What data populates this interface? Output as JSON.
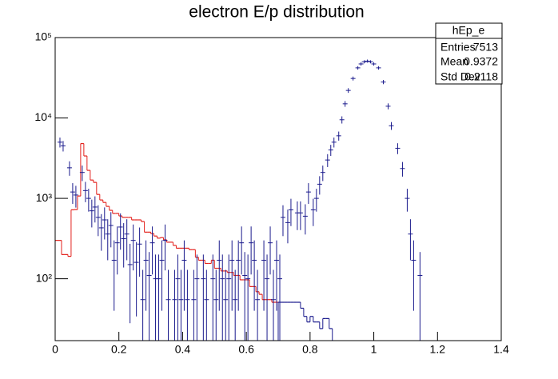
{
  "chart_data": {
    "type": "histogram",
    "title": "electron E/p distribution",
    "log_y": true,
    "xlim": [
      0,
      1.4
    ],
    "ylim": [
      17,
      100000
    ],
    "xticks": [
      0,
      0.2,
      0.4,
      0.6,
      0.8,
      1,
      1.2,
      1.4
    ],
    "yticks": [
      {
        "value": 100,
        "label": "10²"
      },
      {
        "value": 1000,
        "label": "10³"
      },
      {
        "value": 10000,
        "label": "10⁴"
      },
      {
        "value": 100000,
        "label": "10⁵"
      }
    ],
    "series": [
      {
        "type": "step",
        "color": "#e3211c",
        "bins": [
          0,
          0.01,
          0.02,
          0.03,
          0.04,
          0.05,
          0.06,
          0.07,
          0.08,
          0.09,
          0.1,
          0.11,
          0.12,
          0.13,
          0.14,
          0.15,
          0.16,
          0.17,
          0.18,
          0.19,
          0.2,
          0.21,
          0.22,
          0.23,
          0.24,
          0.25,
          0.26,
          0.27,
          0.28,
          0.29,
          0.3,
          0.31,
          0.32,
          0.33,
          0.34,
          0.35,
          0.36,
          0.37,
          0.38,
          0.39,
          0.4,
          0.41,
          0.42,
          0.43,
          0.44,
          0.45,
          0.46,
          0.47,
          0.48,
          0.49,
          0.5,
          0.51,
          0.52,
          0.53,
          0.54,
          0.55,
          0.56,
          0.57,
          0.58,
          0.59,
          0.6,
          0.61,
          0.62,
          0.63,
          0.64,
          0.65,
          0.66,
          0.67,
          0.68,
          0.69,
          0.7
        ],
        "values": [
          300,
          300,
          200,
          200,
          190,
          720,
          725,
          1070,
          4800,
          3370,
          2230,
          1690,
          1580,
          1120,
          955,
          890,
          795,
          710,
          650,
          650,
          605,
          580,
          580,
          580,
          540,
          540,
          540,
          515,
          380,
          380,
          365,
          340,
          320,
          325,
          305,
          285,
          285,
          260,
          240,
          240,
          240,
          240,
          230,
          230,
          185,
          170,
          170,
          155,
          155,
          170,
          135,
          135,
          125,
          125,
          120,
          120,
          110,
          110,
          97,
          97,
          97,
          80,
          80,
          69,
          64,
          55,
          55,
          55,
          51,
          51
        ]
      },
      {
        "type": "step",
        "color": "#1a1a8c",
        "bins": [
          0.7,
          0.71,
          0.72,
          0.73,
          0.74,
          0.75,
          0.76,
          0.77,
          0.78,
          0.79,
          0.8,
          0.81,
          0.82,
          0.83,
          0.84,
          0.85,
          0.86,
          0.87
        ],
        "values": [
          51,
          51,
          51,
          51,
          51,
          51,
          51,
          43,
          34,
          29,
          34,
          29,
          29,
          24,
          32,
          32,
          24
        ]
      },
      {
        "type": "errorbar",
        "color": "#1a1a8c",
        "x": [
          0.015,
          0.025,
          0.045,
          0.055,
          0.065,
          0.085,
          0.095,
          0.105,
          0.115,
          0.125,
          0.135,
          0.145,
          0.155,
          0.165,
          0.175,
          0.185,
          0.195,
          0.205,
          0.215,
          0.225,
          0.235,
          0.245,
          0.255,
          0.265,
          0.275,
          0.285,
          0.295,
          0.305,
          0.315,
          0.325,
          0.335,
          0.345,
          0.355,
          0.375,
          0.385,
          0.395,
          0.405,
          0.415,
          0.435,
          0.445,
          0.465,
          0.475,
          0.495,
          0.505,
          0.515,
          0.525,
          0.535,
          0.545,
          0.555,
          0.565,
          0.575,
          0.585,
          0.595,
          0.605,
          0.615,
          0.625,
          0.635,
          0.655,
          0.665,
          0.675,
          0.685,
          0.695,
          0.705,
          0.715,
          0.73,
          0.74,
          0.76,
          0.77,
          0.785,
          0.795,
          0.81,
          0.82,
          0.83,
          0.84,
          0.855,
          0.865,
          0.875,
          0.89,
          0.9,
          0.91,
          0.92,
          0.935,
          0.95,
          0.96,
          0.97,
          0.98,
          0.99,
          1.0,
          1.015,
          1.03,
          1.045,
          1.055,
          1.075,
          1.09,
          1.105,
          1.115,
          1.125,
          1.145
        ],
        "values": [
          5000,
          4500,
          2400,
          1200,
          1100,
          2100,
          1250,
          1000,
          700,
          780,
          580,
          430,
          540,
          360,
          460,
          170,
          280,
          440,
          315,
          360,
          150,
          300,
          160,
          270,
          55,
          170,
          110,
          280,
          100,
          100,
          170,
          300,
          55,
          55,
          100,
          55,
          170,
          55,
          55,
          100,
          100,
          55,
          100,
          55,
          170,
          100,
          55,
          100,
          170,
          55,
          170,
          280,
          110,
          100,
          280,
          170,
          55,
          170,
          100,
          280,
          55,
          170,
          100,
          580,
          500,
          720,
          660,
          660,
          600,
          1200,
          720,
          1000,
          1500,
          2100,
          3000,
          4000,
          5000,
          6000,
          9500,
          15000,
          22000,
          31000,
          42000,
          47000,
          50000,
          51000,
          50000,
          47000,
          42000,
          28000,
          14000,
          8000,
          4200,
          2350,
          1000,
          360,
          170,
          110
        ],
        "errors": [
          707,
          670,
          490,
          346,
          332,
          458,
          354,
          316,
          265,
          279,
          241,
          207,
          232,
          190,
          214,
          130,
          167,
          210,
          177,
          190,
          122,
          173,
          126,
          164,
          74,
          130,
          105,
          167,
          100,
          100,
          130,
          173,
          74,
          74,
          100,
          74,
          130,
          74,
          74,
          100,
          100,
          74,
          100,
          74,
          130,
          100,
          74,
          100,
          130,
          74,
          130,
          167,
          105,
          100,
          167,
          130,
          74,
          130,
          100,
          167,
          74,
          130,
          100,
          241,
          224,
          268,
          257,
          257,
          245,
          346,
          268,
          316,
          387,
          458,
          548,
          632,
          707,
          775,
          975,
          1225,
          1483,
          1761,
          2049,
          2168,
          2236,
          2258,
          2236,
          2168,
          2049,
          1673,
          1183,
          894,
          648,
          485,
          316,
          190,
          130,
          105
        ]
      }
    ],
    "stats": {
      "title": "hEp_e",
      "rows": [
        [
          "Entries",
          7513
        ],
        [
          "Mean",
          0.9372
        ],
        [
          "Std Dev",
          0.2118
        ]
      ]
    }
  }
}
